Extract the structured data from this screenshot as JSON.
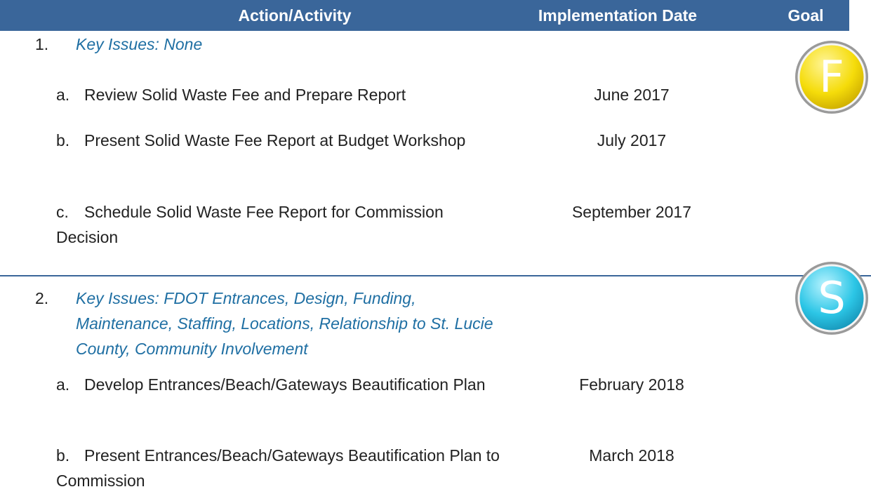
{
  "header": {
    "columns": [
      "Action/Activity",
      "Implementation Date",
      "Goal"
    ]
  },
  "sections": [
    {
      "number": "1.",
      "key_issues": "Key Issues:  None",
      "goal": "F",
      "items": [
        {
          "label": "a.",
          "text": "Review Solid Waste Fee and Prepare Report",
          "date": "June 2017"
        },
        {
          "label": "b.",
          "text": "Present Solid Waste Fee Report at Budget Workshop",
          "date": "July 2017"
        },
        {
          "label": "c.",
          "text": "Schedule Solid Waste Fee Report for Commission Decision",
          "date": "September 2017"
        }
      ]
    },
    {
      "number": "2.",
      "key_issues": "Key Issues:  FDOT Entrances, Design, Funding, Maintenance, Staffing, Locations, Relationship to St. Lucie County, Community Involvement",
      "goal": "S",
      "items": [
        {
          "label": "a.",
          "text": "Develop Entrances/Beach/Gateways Beautification Plan",
          "date": "February 2018"
        },
        {
          "label": "b.",
          "text": "Present Entrances/Beach/Gateways Beautification Plan to Commission",
          "date": "March 2018"
        }
      ]
    }
  ]
}
